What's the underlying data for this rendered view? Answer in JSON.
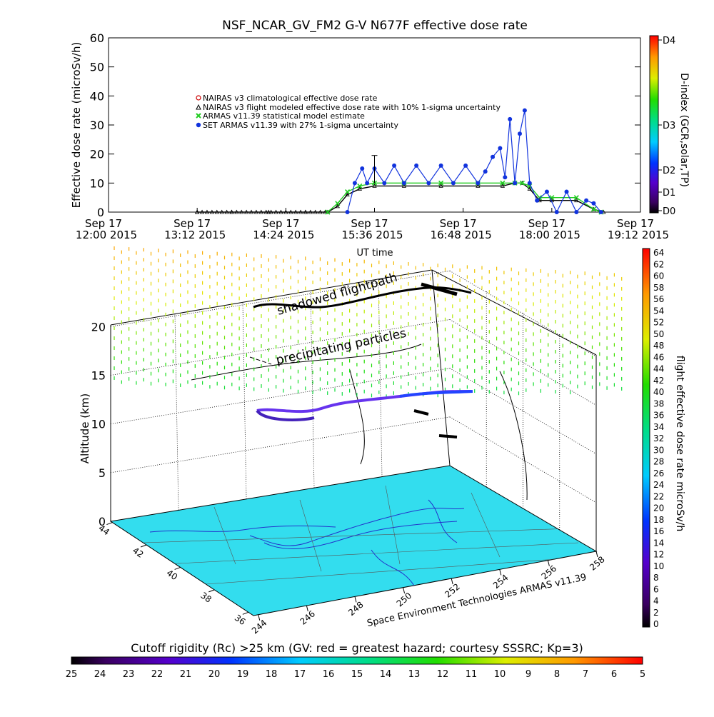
{
  "chart_data": [
    {
      "type": "line",
      "title": "NSF_NCAR_GV_FM2 G-V     N677F  effective dose rate",
      "ylabel": "Effective dose rate (microSv/h)",
      "xlabel": "UT time",
      "ylim": [
        0,
        60
      ],
      "yticks": [
        "0",
        "10",
        "20",
        "30",
        "40",
        "50",
        "60"
      ],
      "xticks": [
        {
          "date": "Sep 17",
          "time": "12:00 2015"
        },
        {
          "date": "Sep 17",
          "time": "13:12 2015"
        },
        {
          "date": "Sep 17",
          "time": "14:24 2015"
        },
        {
          "date": "Sep 17",
          "time": "15:36 2015"
        },
        {
          "date": "Sep 17",
          "time": "16:48 2015"
        },
        {
          "date": "Sep 17",
          "time": "18:00 2015"
        },
        {
          "date": "Sep 17",
          "time": "19:12 2015"
        }
      ],
      "legend_position": "top-left",
      "series": [
        {
          "name": "NAIRAS v3 climatological effective dose rate",
          "marker": "circle-open",
          "color": "#cc0000"
        },
        {
          "name": "NAIRAS v3 flight modeled effective dose rate with 10% 1-sigma uncertainty",
          "marker": "triangle-open",
          "color": "#000000",
          "x": [
            "13:12",
            "13:40",
            "14:10",
            "14:40",
            "14:58",
            "15:06",
            "15:14",
            "15:24",
            "15:36",
            "16:00",
            "16:30",
            "17:00",
            "17:20",
            "17:30",
            "17:36",
            "17:42",
            "17:50",
            "18:00",
            "18:20",
            "18:34",
            "18:42"
          ],
          "values": [
            0,
            0,
            0,
            0,
            0,
            2,
            6,
            8,
            9,
            9,
            9,
            9,
            9,
            10,
            10,
            8,
            4,
            4,
            4,
            1,
            0
          ]
        },
        {
          "name": "ARMAS v11.39 statistical model estimate",
          "marker": "asterisk",
          "color": "#22cc22",
          "x": [
            "14:58",
            "15:06",
            "15:14",
            "15:24",
            "15:36",
            "16:00",
            "16:30",
            "17:00",
            "17:20",
            "17:30",
            "17:36",
            "17:42",
            "17:50",
            "18:00",
            "18:20",
            "18:34",
            "18:40"
          ],
          "values": [
            0,
            3,
            7,
            9,
            10,
            10,
            10,
            10,
            10,
            10,
            10,
            9,
            5,
            5,
            5,
            1,
            0
          ]
        },
        {
          "name": "SET ARMAS v11.39 with 27% 1-sigma uncertainty",
          "marker": "dot",
          "color": "#1133dd",
          "x": [
            "15:14",
            "15:20",
            "15:26",
            "15:30",
            "15:36",
            "15:44",
            "15:52",
            "16:00",
            "16:10",
            "16:20",
            "16:30",
            "16:40",
            "16:50",
            "17:00",
            "17:06",
            "17:12",
            "17:18",
            "17:22",
            "17:26",
            "17:30",
            "17:34",
            "17:38",
            "17:42",
            "17:48",
            "17:56",
            "18:04",
            "18:12",
            "18:20",
            "18:28",
            "18:34",
            "18:40"
          ],
          "values": [
            0,
            10,
            15,
            10,
            15,
            10,
            16,
            10,
            16,
            10,
            16,
            10,
            16,
            10,
            14,
            19,
            22,
            12,
            32,
            10,
            27,
            35,
            10,
            4,
            7,
            0,
            7,
            0,
            4,
            3,
            0
          ]
        }
      ],
      "right_axis": {
        "label": "D-index (GCR,solar,TP)",
        "ticks": [
          "D4",
          "D3",
          "D2",
          "D1",
          "D0"
        ]
      }
    },
    {
      "type": "scatter",
      "subtype": "3d-flight-track",
      "zlabel": "Altitude (km)",
      "zticks": [
        "0",
        "5",
        "10",
        "15",
        "20"
      ],
      "lat_ticks": [
        "44",
        "42",
        "40",
        "38",
        "36"
      ],
      "lon_ticks": [
        "244",
        "246",
        "248",
        "250",
        "252",
        "254",
        "256",
        "258"
      ],
      "annotations": [
        "shadowed flightpath",
        "precipitating particles"
      ],
      "credit": "Space Environment Technologies ARMAS v11.39",
      "colorbar": {
        "label": "flight effective dose rate microSv/h",
        "ticks": [
          "64",
          "62",
          "60",
          "58",
          "56",
          "54",
          "52",
          "50",
          "48",
          "46",
          "44",
          "42",
          "40",
          "38",
          "36",
          "34",
          "32",
          "30",
          "28",
          "26",
          "24",
          "22",
          "20",
          "18",
          "16",
          "14",
          "12",
          "10",
          "8",
          "6",
          "4",
          "2",
          "0"
        ]
      }
    },
    {
      "type": "heatmap",
      "title": "Cutoff rigidity (Rc) >25 km (GV: red = greatest hazard; courtesy SSSRC; Kp=3)",
      "colorbar_ticks": [
        "25",
        "24",
        "23",
        "22",
        "21",
        "20",
        "19",
        "18",
        "17",
        "16",
        "15",
        "14",
        "13",
        "12",
        "11",
        "10",
        "9",
        "8",
        "7",
        "6",
        "5"
      ]
    }
  ]
}
